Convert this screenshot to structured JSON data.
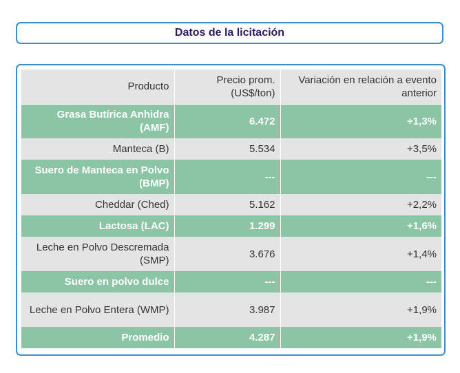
{
  "title": "Datos de la licitación",
  "table": {
    "headers": [
      "Producto",
      "Precio prom. (US$/ton)",
      "Variación en relación a evento anterior"
    ],
    "rows": [
      {
        "producto": "Grasa Butírica Anhidra (AMF)",
        "precio": "6.472",
        "variacion": "+1,3%"
      },
      {
        "producto": "Manteca (B)",
        "precio": "5.534",
        "variacion": "+3,5%"
      },
      {
        "producto": "Suero de Manteca en Polvo (BMP)",
        "precio": "---",
        "variacion": "---"
      },
      {
        "producto": "Cheddar (Ched)",
        "precio": "5.162",
        "variacion": "+2,2%"
      },
      {
        "producto": "Lactosa (LAC)",
        "precio": "1.299",
        "variacion": "+1,6%"
      },
      {
        "producto": "Leche en Polvo Descremada (SMP)",
        "precio": "3.676",
        "variacion": "+1,4%"
      },
      {
        "producto": "Suero en polvo dulce",
        "precio": "---",
        "variacion": "---"
      },
      {
        "producto": "Leche en Polvo Entera (WMP)",
        "precio": "3.987",
        "variacion": "+1,9%"
      },
      {
        "producto": "Promedio",
        "precio": "4.287",
        "variacion": "+1,9%"
      }
    ]
  },
  "colors": {
    "accent_border": "#3a8fc4",
    "title_text": "#2a1a5e",
    "green_row": "#8cc4a6",
    "gray_row": "#e4e4e4"
  }
}
